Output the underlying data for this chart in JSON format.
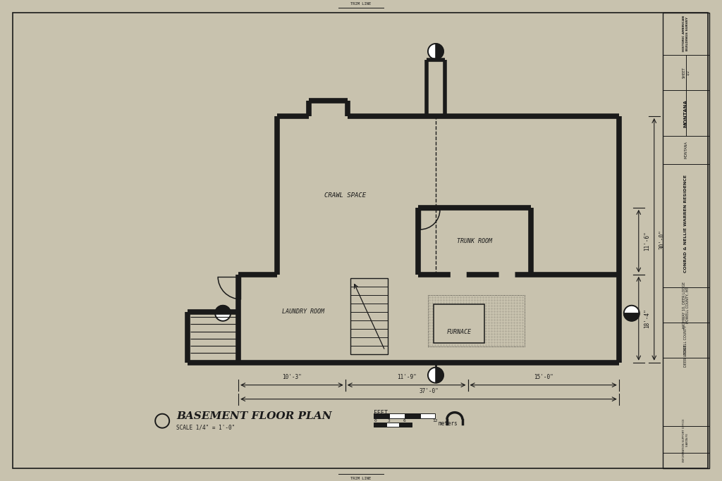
{
  "bg_color": "#c8c2ae",
  "line_color": "#1a1a1a",
  "title": "BASEMENT FLOOR PLAN",
  "subtitle": "SCALE 1/4\" = 1'-0\"",
  "room_labels": {
    "crawl_space": "CRAWL SPACE",
    "trunk_room": "TRUNK ROOM",
    "laundry_room": "LAUNDRY ROOM",
    "furnace": "FURNACE"
  },
  "dimensions": {
    "d1": "10'-3\"",
    "d2": "11'-9\"",
    "d3": "15'-0\"",
    "d4": "37'-0\"",
    "d5": "11'-6\"",
    "d6": "30'-0\"",
    "d7": "18'-4\""
  },
  "scale_label": "FEET",
  "meters_label": "meters",
  "fold_line_label": "TRIM LINE"
}
